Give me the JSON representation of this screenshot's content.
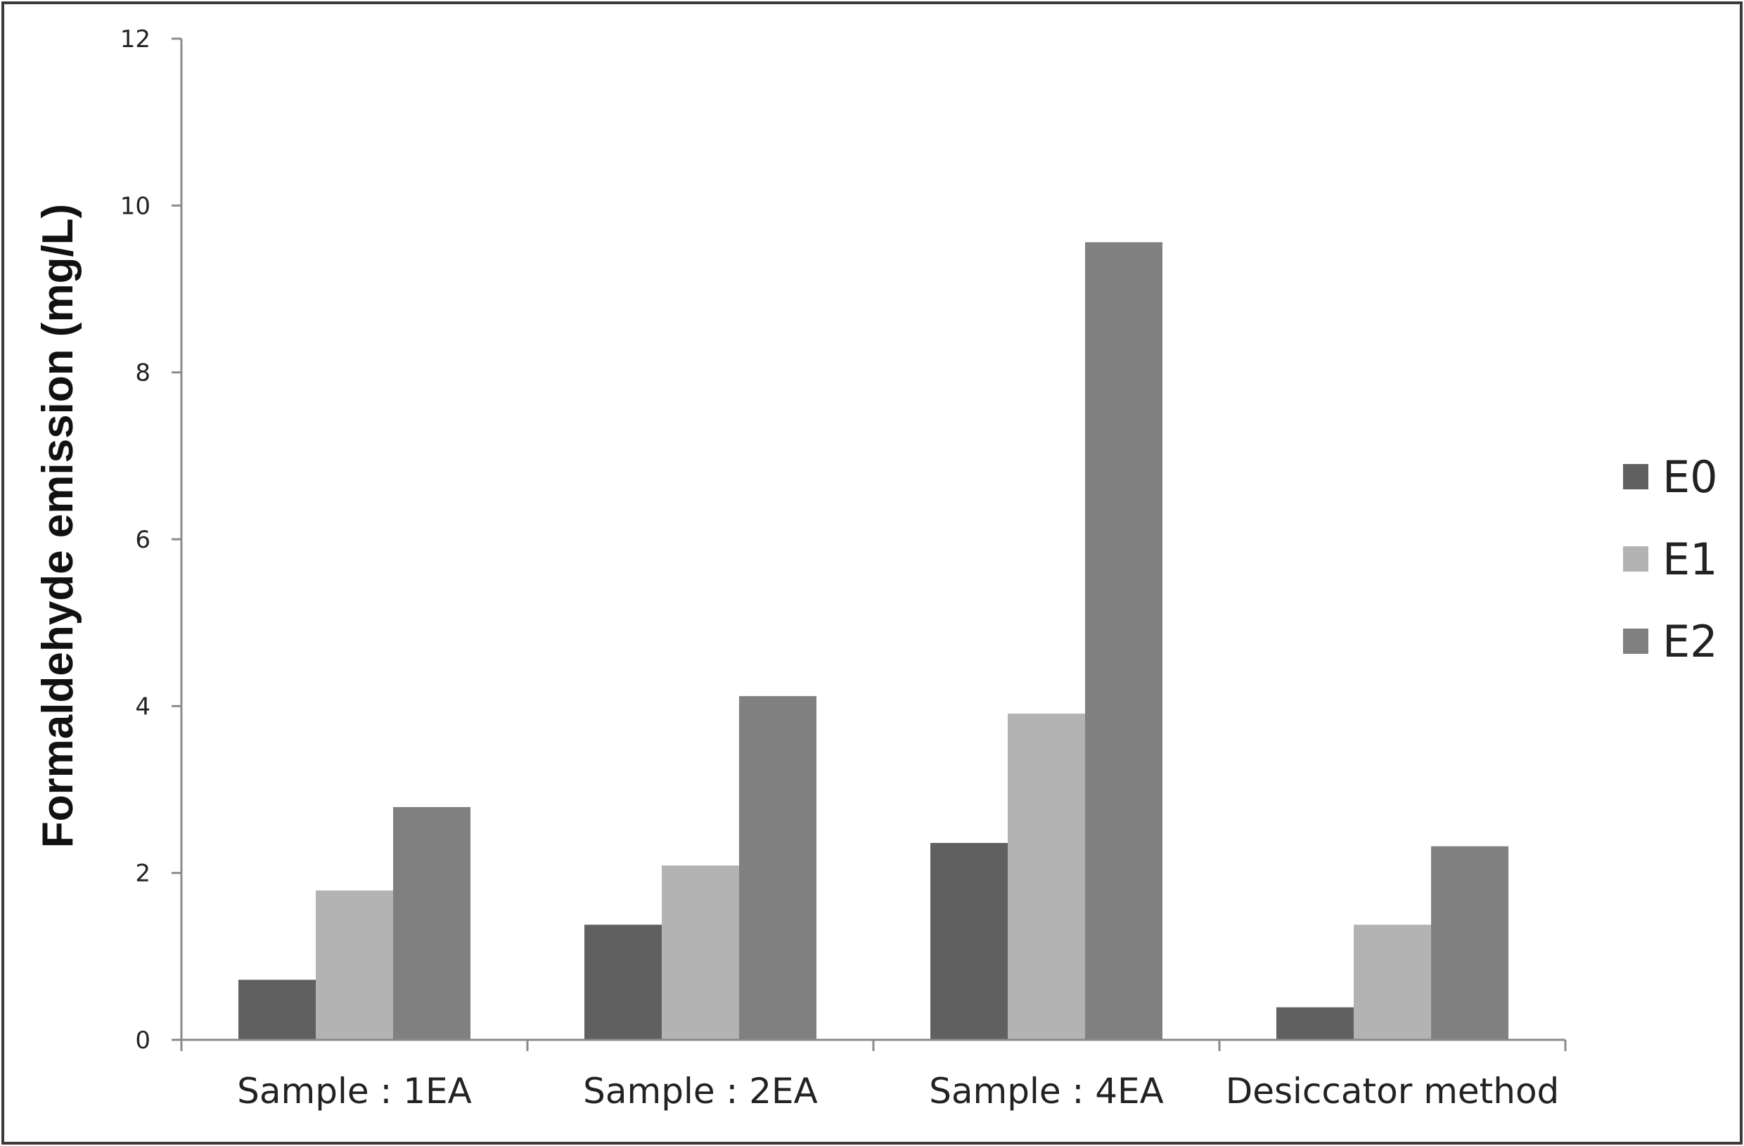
{
  "chart_data": {
    "type": "bar",
    "title": "",
    "xlabel": "",
    "ylabel": "Formaldehyde emission (mg/L)",
    "ylim": [
      0,
      12
    ],
    "yticks": [
      "0",
      "2",
      "4",
      "6",
      "8",
      "10",
      "12"
    ],
    "categories": [
      "Sample : 1EA",
      "Sample : 2EA",
      "Sample : 4EA",
      "Desiccator method"
    ],
    "series": [
      {
        "name": "E0",
        "color": "#606060",
        "values": [
          0.72,
          1.38,
          2.36,
          0.39
        ]
      },
      {
        "name": "E1",
        "color": "#b3b3b3",
        "values": [
          1.79,
          2.09,
          3.91,
          1.38
        ]
      },
      {
        "name": "E2",
        "color": "#808080",
        "values": [
          2.79,
          4.12,
          9.56,
          2.32
        ]
      }
    ],
    "legend_position": "right",
    "grid": false
  }
}
